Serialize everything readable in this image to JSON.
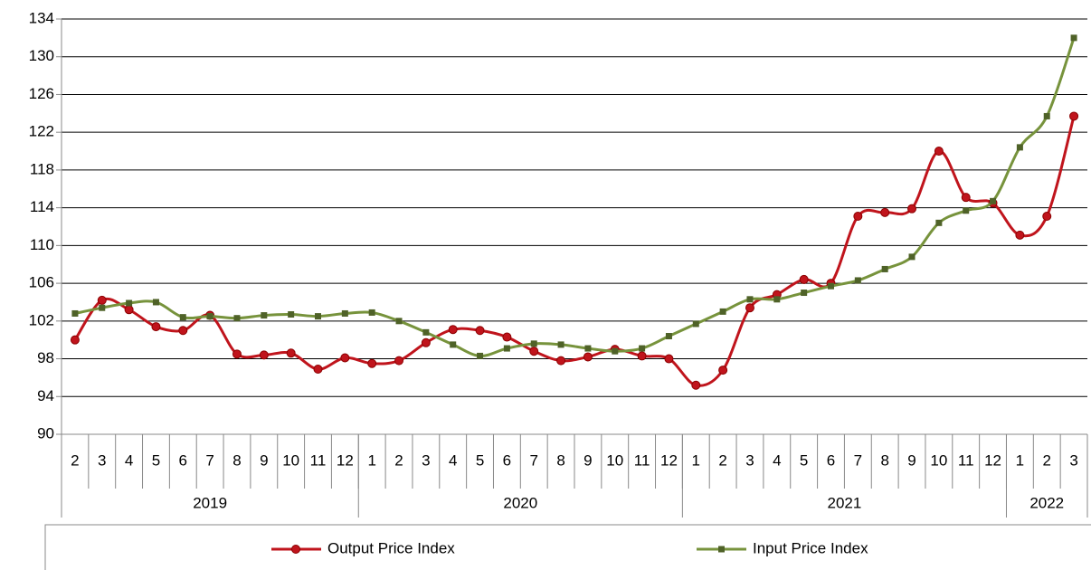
{
  "chart_data": {
    "type": "line",
    "groups": [
      {
        "name": "2019",
        "categories": [
          "2",
          "3",
          "4",
          "5",
          "6",
          "7",
          "8",
          "9",
          "10",
          "11",
          "12"
        ]
      },
      {
        "name": "2020",
        "categories": [
          "1",
          "2",
          "3",
          "4",
          "5",
          "6",
          "7",
          "8",
          "9",
          "10",
          "11",
          "12"
        ]
      },
      {
        "name": "2021",
        "categories": [
          "1",
          "2",
          "3",
          "4",
          "5",
          "6",
          "7",
          "8",
          "9",
          "10",
          "11",
          "12"
        ]
      },
      {
        "name": "2022",
        "categories": [
          "1",
          "2",
          "3"
        ]
      }
    ],
    "series": [
      {
        "name": "Output Price Index",
        "color": "#c0141c",
        "marker": "circle",
        "values": [
          100.0,
          104.2,
          103.2,
          101.4,
          101.0,
          102.6,
          98.5,
          98.4,
          98.6,
          96.9,
          98.1,
          97.5,
          97.8,
          99.7,
          101.1,
          101.0,
          100.3,
          98.8,
          97.8,
          98.2,
          99.0,
          98.3,
          98.0,
          95.2,
          96.8,
          103.4,
          104.8,
          106.4,
          106.0,
          113.1,
          113.5,
          113.9,
          120.0,
          115.1,
          114.5,
          111.1,
          113.1,
          123.7
        ]
      },
      {
        "name": "Input Price Index",
        "color": "#77933c",
        "marker": "square",
        "values": [
          102.8,
          103.4,
          103.9,
          104.0,
          102.4,
          102.5,
          102.3,
          102.6,
          102.7,
          102.5,
          102.8,
          102.9,
          102.0,
          100.8,
          99.5,
          98.3,
          99.1,
          99.6,
          99.5,
          99.1,
          98.8,
          99.1,
          100.4,
          101.7,
          103.0,
          104.3,
          104.3,
          105.0,
          105.7,
          106.3,
          107.5,
          108.8,
          112.4,
          113.7,
          114.7,
          120.4,
          123.7,
          132.0
        ]
      }
    ],
    "ylim": [
      90,
      134
    ],
    "yticks": [
      90,
      94,
      98,
      102,
      106,
      110,
      114,
      118,
      122,
      126,
      130,
      134
    ],
    "grid": true,
    "smooth": true,
    "legend": "bottom"
  }
}
